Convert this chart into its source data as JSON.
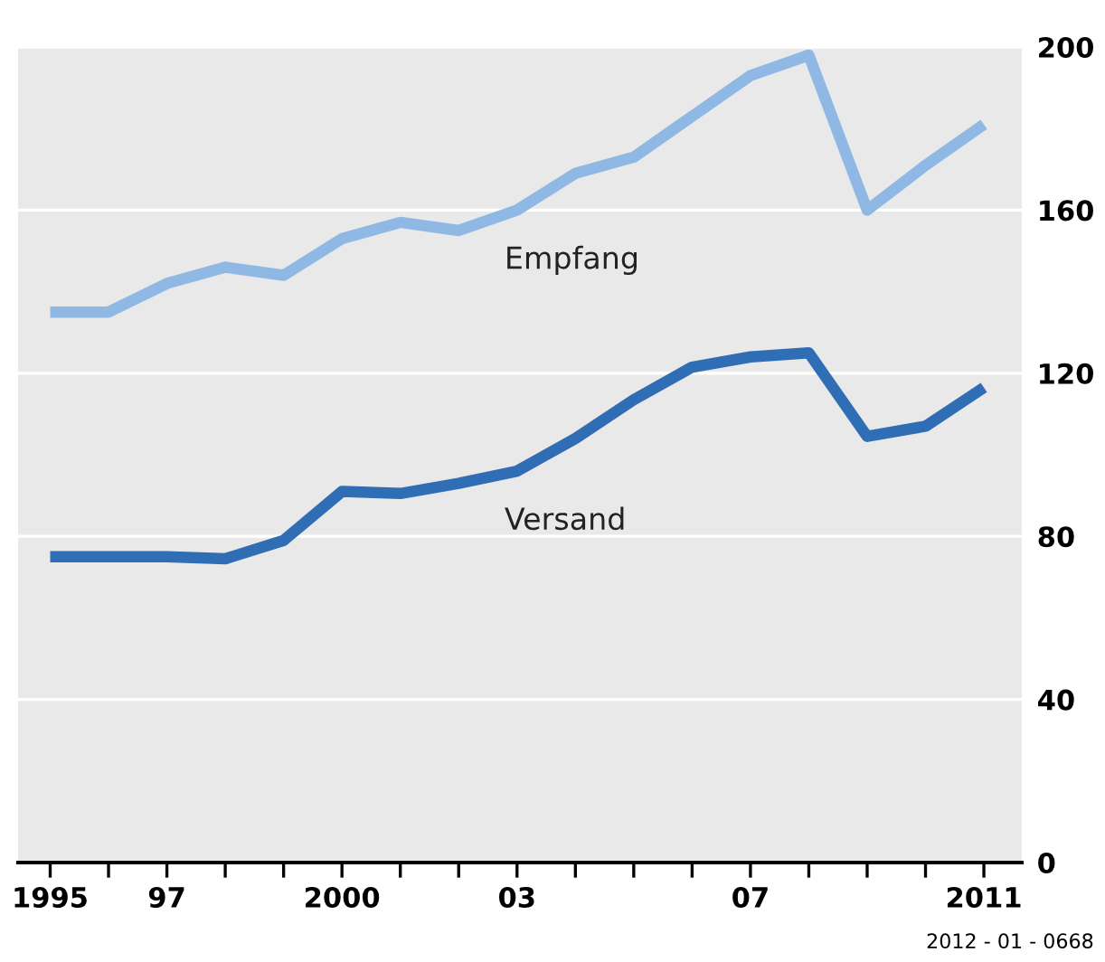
{
  "chart_data": {
    "type": "line",
    "x": [
      1995,
      1996,
      1997,
      1998,
      1999,
      2000,
      2001,
      2002,
      2003,
      2004,
      2005,
      2006,
      2007,
      2008,
      2009,
      2010,
      2011
    ],
    "series": [
      {
        "name": "Empfang",
        "color": "#8fb9e4",
        "values": [
          135,
          135,
          142,
          146,
          144,
          153,
          157,
          155,
          160,
          169,
          173,
          183,
          193,
          198,
          160,
          171,
          181
        ]
      },
      {
        "name": "Versand",
        "color": "#2f6db4",
        "values": [
          75,
          75,
          75,
          74.5,
          79,
          91,
          90.5,
          93,
          96,
          104,
          113.5,
          121.5,
          124,
          125,
          104.5,
          107,
          116.5
        ]
      }
    ],
    "xlim": [
      1994.45,
      2011.65
    ],
    "xticks": [
      1995,
      {
        "value": 1996,
        "label": null
      },
      {
        "value": 1997,
        "label": "97"
      },
      {
        "value": 1998,
        "label": null
      },
      {
        "value": 1999,
        "label": null
      },
      2000,
      {
        "value": 2001,
        "label": null
      },
      {
        "value": 2002,
        "label": null
      },
      {
        "value": 2003,
        "label": "03"
      },
      {
        "value": 2004,
        "label": null
      },
      {
        "value": 2005,
        "label": null
      },
      {
        "value": 2006,
        "label": null
      },
      {
        "value": 2007,
        "label": "07"
      },
      {
        "value": 2008,
        "label": null
      },
      {
        "value": 2009,
        "label": null
      },
      {
        "value": 2010,
        "label": null
      },
      2011
    ],
    "ylim": [
      0,
      200
    ],
    "yticks": [
      0,
      40,
      80,
      120,
      160,
      200
    ],
    "grid": "y",
    "legend": false,
    "marker": "none",
    "line_style": "solid",
    "annotations": [
      "2012 - 01 - 0668"
    ]
  }
}
